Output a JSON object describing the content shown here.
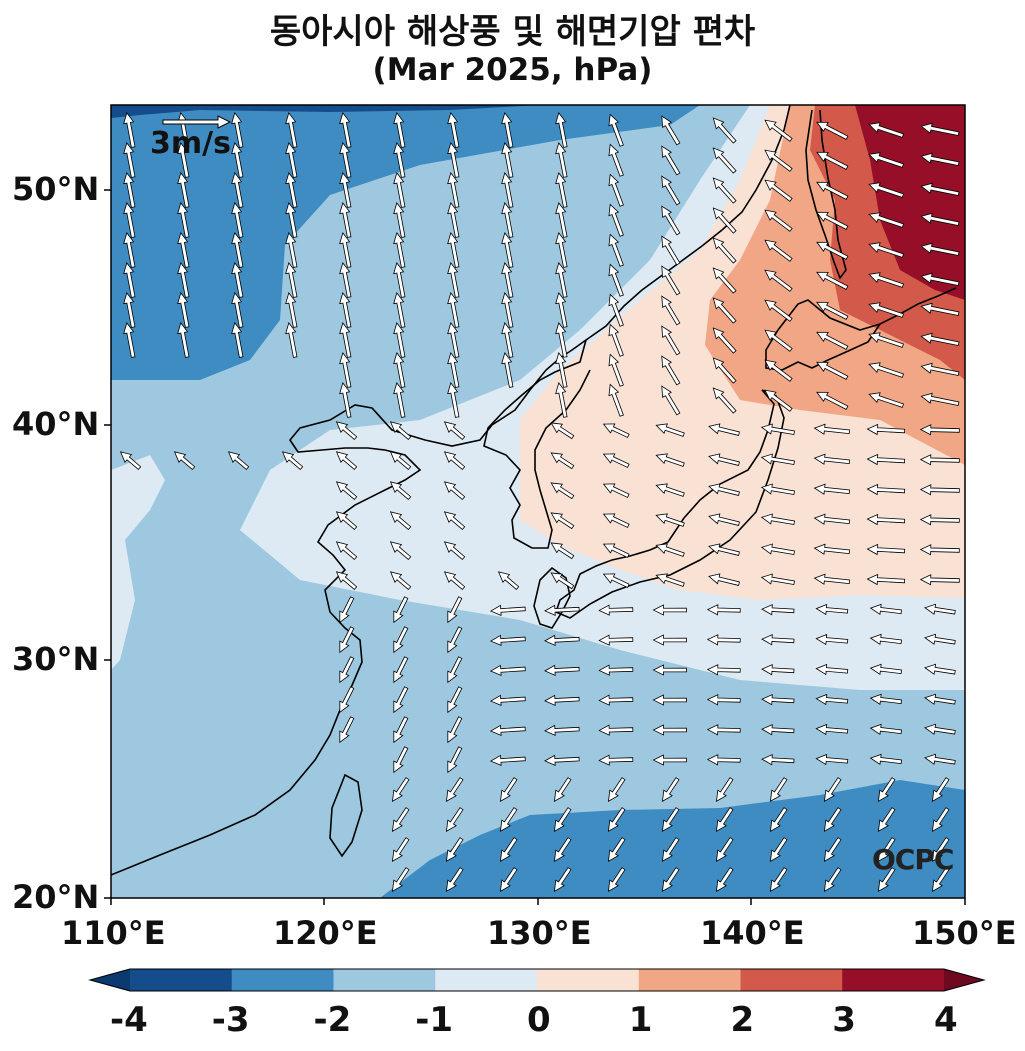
{
  "title": "동아시아 해상풍 및 해면기압 편차",
  "subtitle": "(Mar 2025, hPa)",
  "map": {
    "lon_range": [
      110,
      150
    ],
    "lat_range": [
      20,
      53.5
    ],
    "lat_ticks": [
      "20°N",
      "30°N",
      "40°N",
      "50°N"
    ],
    "lon_ticks": [
      "110°E",
      "120°E",
      "130°E",
      "140°E",
      "150°E"
    ],
    "reference_vector": "3m/s",
    "watermark": "OCPC"
  },
  "colorbar": {
    "ticks": [
      "-4",
      "-3",
      "-2",
      "-1",
      "0",
      "1",
      "2",
      "3",
      "4"
    ],
    "colors": [
      "#144c8c",
      "#3f8cc2",
      "#9dc8e0",
      "#deeaf3",
      "#f9e1d4",
      "#f1a685",
      "#d35a4a",
      "#960e27"
    ],
    "under_color": "#0b3a70",
    "over_color": "#6d0a1f"
  },
  "colors": {
    "land_outline": "#000000",
    "arrow_fill": "#ffffff",
    "arrow_stroke": "#000000"
  }
}
